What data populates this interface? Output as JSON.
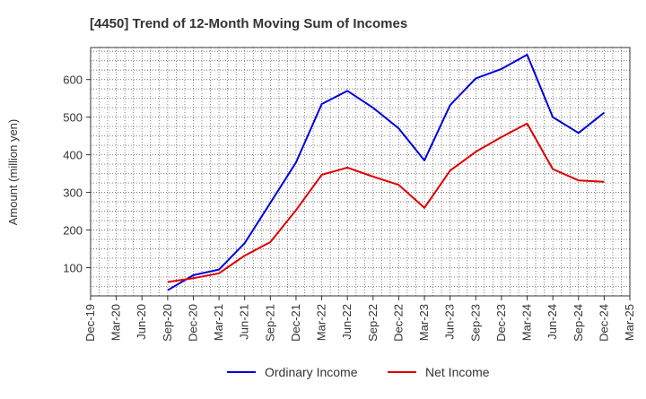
{
  "chart_data": {
    "type": "line",
    "title": "[4450]  Trend of 12-Month Moving Sum of Incomes",
    "xlabel": "",
    "ylabel": "Amount (million yen)",
    "x_ticks": [
      "Dec-19",
      "Mar-20",
      "Jun-20",
      "Sep-20",
      "Dec-20",
      "Mar-21",
      "Jun-21",
      "Sep-21",
      "Dec-21",
      "Mar-22",
      "Jun-22",
      "Sep-22",
      "Dec-22",
      "Mar-23",
      "Jun-23",
      "Sep-23",
      "Dec-23",
      "Mar-24",
      "Jun-24",
      "Sep-24",
      "Dec-24",
      "Mar-25"
    ],
    "y_ticks": [
      100,
      200,
      300,
      400,
      500,
      600
    ],
    "ylim": [
      25,
      685
    ],
    "grid": true,
    "legend_position": "bottom",
    "series": [
      {
        "name": "Ordinary Income",
        "color": "#0000dd",
        "x": [
          "Sep-20",
          "Dec-20",
          "Mar-21",
          "Jun-21",
          "Sep-21",
          "Dec-21",
          "Mar-22",
          "Jun-22",
          "Sep-22",
          "Dec-22",
          "Mar-23",
          "Jun-23",
          "Sep-23",
          "Dec-23",
          "Mar-24",
          "Jun-24",
          "Sep-24",
          "Dec-24"
        ],
        "values": [
          40,
          80,
          95,
          165,
          272,
          380,
          535,
          570,
          525,
          470,
          385,
          532,
          603,
          628,
          666,
          500,
          458,
          512
        ]
      },
      {
        "name": "Net Income",
        "color": "#dd0000",
        "x": [
          "Sep-20",
          "Dec-20",
          "Mar-21",
          "Jun-21",
          "Sep-21",
          "Dec-21",
          "Mar-22",
          "Jun-22",
          "Sep-22",
          "Dec-22",
          "Mar-23",
          "Jun-23",
          "Sep-23",
          "Dec-23",
          "Mar-24",
          "Jun-24",
          "Sep-24",
          "Dec-24"
        ],
        "values": [
          62,
          72,
          85,
          132,
          168,
          253,
          347,
          366,
          342,
          320,
          259,
          358,
          408,
          447,
          483,
          362,
          332,
          328
        ]
      }
    ]
  }
}
